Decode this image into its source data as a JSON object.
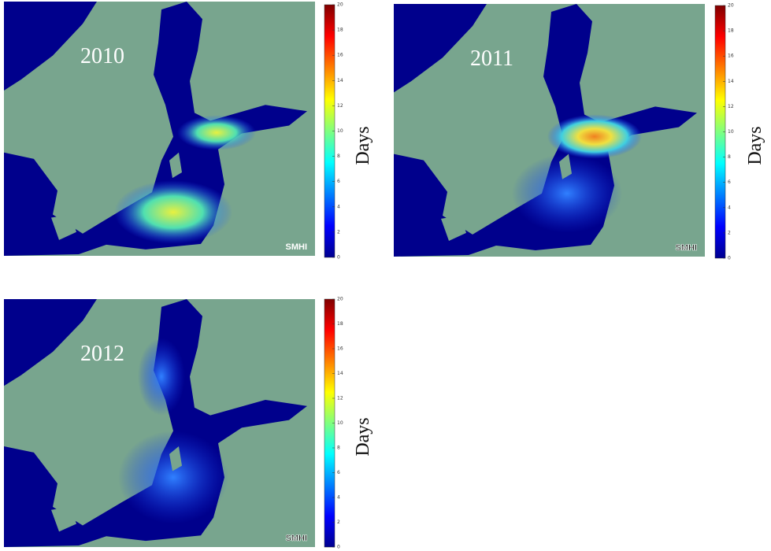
{
  "panels": [
    {
      "year": "2010",
      "watermark": "SMHI",
      "colorbar": {
        "label": "Days",
        "range": [
          0,
          20
        ],
        "ticks": [
          0,
          2,
          4,
          6,
          8,
          10,
          12,
          14,
          16,
          18,
          20
        ]
      }
    },
    {
      "year": "2011",
      "watermark": "SMHI",
      "colorbar": {
        "label": "Days",
        "range": [
          0,
          20
        ],
        "ticks": [
          0,
          2,
          4,
          6,
          8,
          10,
          12,
          14,
          16,
          18,
          20
        ]
      }
    },
    {
      "year": "2012",
      "watermark": "SMHI",
      "colorbar": {
        "label": "Days",
        "range": [
          0,
          20
        ],
        "ticks": [
          0,
          2,
          4,
          6,
          8,
          10,
          12,
          14,
          16,
          18,
          20
        ]
      }
    }
  ]
}
